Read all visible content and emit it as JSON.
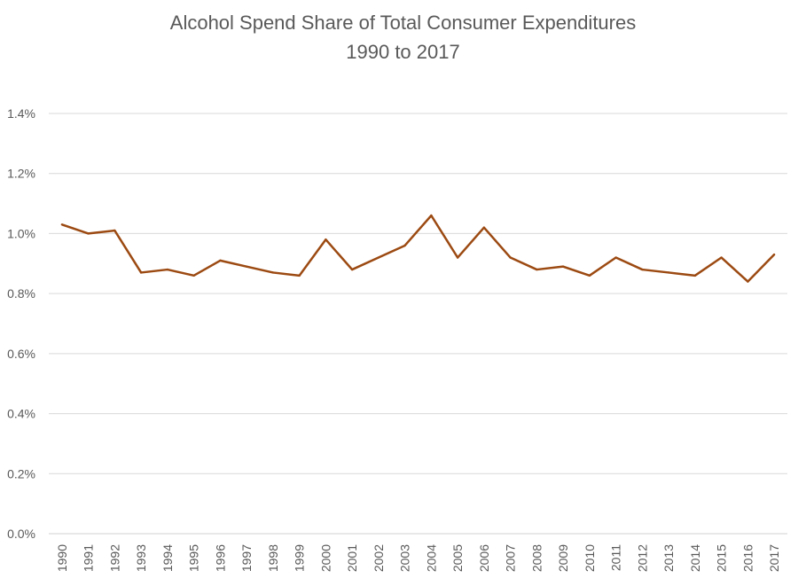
{
  "chart_data": {
    "type": "line",
    "title": "Alcohol Spend Share of Total Consumer Expenditures",
    "subtitle": "1990 to 2017",
    "xlabel": "",
    "ylabel": "",
    "ylim": [
      0,
      1.4
    ],
    "y_ticks": [
      "0.0%",
      "0.2%",
      "0.4%",
      "0.6%",
      "0.8%",
      "1.0%",
      "1.2%",
      "1.4%"
    ],
    "grid": true,
    "legend": "none",
    "line_color": "#9C4A12",
    "categories": [
      "1990",
      "1991",
      "1992",
      "1993",
      "1994",
      "1995",
      "1996",
      "1997",
      "1998",
      "1999",
      "2000",
      "2001",
      "2002",
      "2003",
      "2004",
      "2005",
      "2006",
      "2007",
      "2008",
      "2009",
      "2010",
      "2011",
      "2012",
      "2013",
      "2014",
      "2015",
      "2016",
      "2017"
    ],
    "series": [
      {
        "values": [
          1.03,
          1.0,
          1.01,
          0.87,
          0.88,
          0.86,
          0.91,
          0.89,
          0.87,
          0.86,
          0.98,
          0.88,
          0.92,
          0.96,
          1.06,
          0.92,
          1.02,
          0.92,
          0.88,
          0.89,
          0.86,
          0.92,
          0.88,
          0.87,
          0.86,
          0.92,
          0.84,
          0.93
        ]
      }
    ]
  }
}
